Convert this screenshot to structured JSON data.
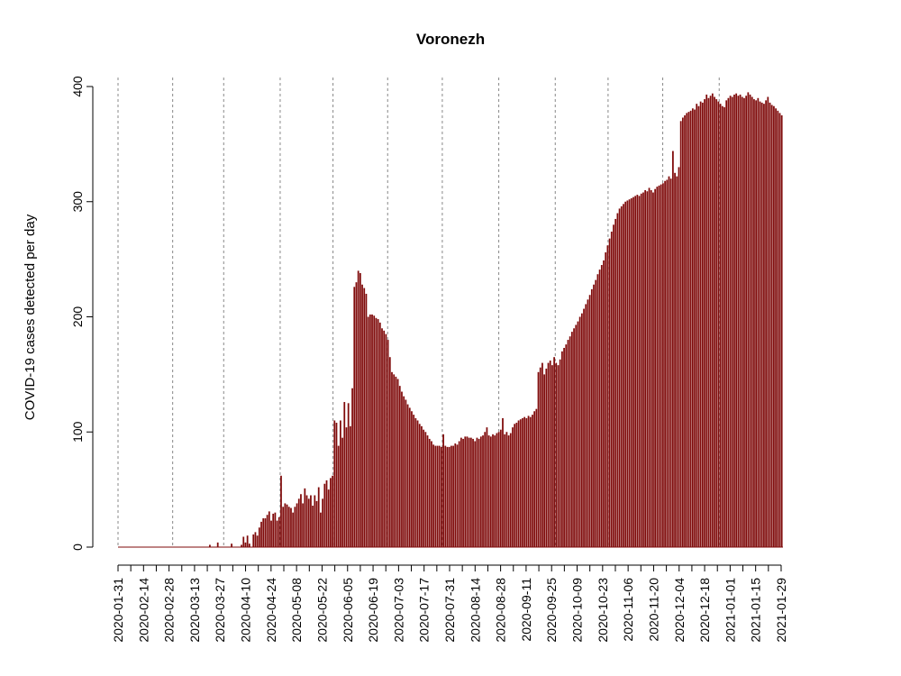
{
  "chart_data": {
    "type": "bar",
    "title": "Voronezh",
    "xlabel": "",
    "ylabel": "COVID-19 cases detected per day",
    "ylim": [
      0,
      400
    ],
    "y_ticks": [
      0,
      100,
      200,
      300,
      400
    ],
    "x_start": "2020-01-31",
    "x_end": "2021-01-30",
    "x_tick_labels": [
      "2020-01-31",
      "2020-02-14",
      "2020-02-28",
      "2020-03-13",
      "2020-03-27",
      "2020-04-10",
      "2020-04-24",
      "2020-05-08",
      "2020-05-22",
      "2020-06-05",
      "2020-06-19",
      "2020-07-03",
      "2020-07-17",
      "2020-07-31",
      "2020-08-14",
      "2020-08-28",
      "2020-09-11",
      "2020-09-25",
      "2020-10-09",
      "2020-10-23",
      "2020-11-06",
      "2020-11-20",
      "2020-12-04",
      "2020-12-18",
      "2021-01-01",
      "2021-01-15",
      "2021-01-29"
    ],
    "grid_dates": [
      "2020-01-31",
      "2020-03-01",
      "2020-03-29",
      "2020-04-29",
      "2020-05-28",
      "2020-06-27",
      "2020-07-27",
      "2020-08-27",
      "2020-09-27",
      "2020-10-26",
      "2020-11-25",
      "2020-12-26"
    ],
    "bar_color": "#7f0a0a",
    "values": [
      0,
      0,
      0,
      0,
      0,
      0,
      0,
      0,
      0,
      0,
      0,
      0,
      0,
      0,
      0,
      0,
      0,
      0,
      0,
      0,
      0,
      0,
      0,
      0,
      0,
      0,
      0,
      0,
      0,
      0,
      0,
      0,
      0,
      0,
      0,
      0,
      0,
      0,
      0,
      0,
      0,
      0,
      0,
      0,
      0,
      0,
      2,
      0,
      0,
      0,
      4,
      0,
      0,
      0,
      0,
      0,
      0,
      3,
      0,
      0,
      0,
      0,
      2,
      9,
      4,
      10,
      3,
      0,
      11,
      13,
      10,
      17,
      22,
      25,
      25,
      28,
      31,
      23,
      29,
      30,
      23,
      26,
      62,
      35,
      38,
      37,
      35,
      34,
      30,
      35,
      38,
      42,
      46,
      38,
      51,
      45,
      42,
      45,
      36,
      45,
      40,
      52,
      30,
      42,
      55,
      58,
      50,
      60,
      62,
      110,
      108,
      88,
      110,
      95,
      126,
      104,
      125,
      105,
      138,
      226,
      230,
      240,
      238,
      228,
      225,
      220,
      200,
      202,
      202,
      201,
      199,
      198,
      195,
      190,
      188,
      185,
      180,
      165,
      152,
      150,
      148,
      146,
      140,
      135,
      131,
      128,
      124,
      121,
      118,
      115,
      112,
      110,
      107,
      105,
      102,
      100,
      97,
      94,
      92,
      89,
      88,
      88,
      88,
      87,
      98,
      88,
      87,
      87,
      88,
      88,
      90,
      89,
      92,
      95,
      94,
      96,
      96,
      95,
      95,
      94,
      92,
      95,
      94,
      96,
      97,
      100,
      104,
      97,
      96,
      98,
      97,
      99,
      100,
      102,
      112,
      98,
      100,
      97,
      99,
      104,
      107,
      108,
      110,
      111,
      112,
      113,
      112,
      114,
      113,
      115,
      118,
      120,
      152,
      156,
      160,
      150,
      155,
      160,
      162,
      158,
      165,
      160,
      158,
      163,
      170,
      173,
      176,
      180,
      183,
      187,
      190,
      193,
      196,
      200,
      203,
      207,
      211,
      215,
      219,
      224,
      228,
      232,
      237,
      241,
      245,
      249,
      256,
      262,
      268,
      274,
      280,
      285,
      290,
      294,
      296,
      298,
      300,
      301,
      302,
      303,
      304,
      305,
      306,
      305,
      307,
      308,
      310,
      309,
      312,
      310,
      308,
      311,
      313,
      314,
      315,
      316,
      318,
      319,
      322,
      320,
      344,
      325,
      322,
      330,
      370,
      373,
      375,
      377,
      378,
      379,
      381,
      380,
      385,
      383,
      387,
      386,
      389,
      393,
      390,
      392,
      394,
      391,
      389,
      387,
      385,
      383,
      382,
      388,
      390,
      392,
      391,
      393,
      394,
      392,
      393,
      391,
      390,
      392,
      395,
      393,
      391,
      389,
      388,
      390,
      387,
      386,
      385,
      388,
      391,
      386,
      384,
      383,
      381,
      379,
      377,
      375
    ]
  }
}
